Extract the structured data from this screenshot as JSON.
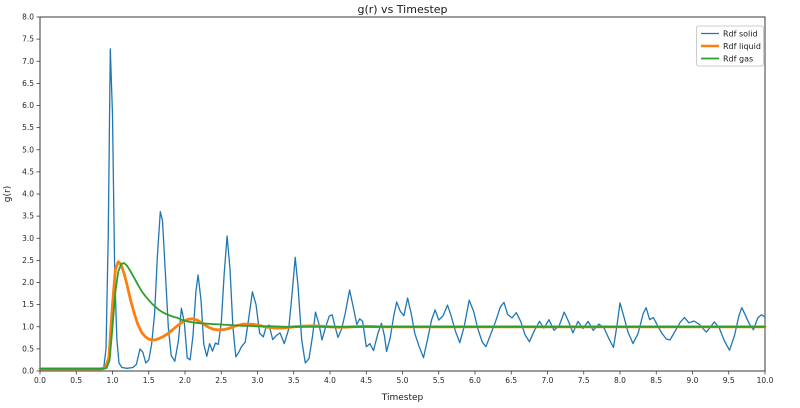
{
  "chart_data": {
    "type": "line",
    "title": "g(r) vs Timestep",
    "xlabel": "Timestep",
    "ylabel": "g(r)",
    "xlim": [
      0.0,
      10.0
    ],
    "ylim": [
      0.0,
      8.0
    ],
    "xtick_step": 0.5,
    "ytick_step": 0.5,
    "grid": false,
    "legend_position": "upper right",
    "background_color": "#ffffff",
    "spine_color": "#3a3a3a",
    "tick_color": "#3a3a3a",
    "legend_border_color": "#cccccc",
    "series": [
      {
        "name": "Rdf solid",
        "color": "#1f77b4",
        "line_width": 1.3,
        "points": [
          [
            0,
            0.05
          ],
          [
            0.3,
            0.04
          ],
          [
            0.6,
            0.05
          ],
          [
            0.8,
            0.05
          ],
          [
            0.88,
            0.08
          ],
          [
            0.91,
            0.5
          ],
          [
            0.94,
            3.0
          ],
          [
            0.97,
            7.28
          ],
          [
            1.0,
            5.8
          ],
          [
            1.03,
            2.2
          ],
          [
            1.06,
            0.7
          ],
          [
            1.09,
            0.18
          ],
          [
            1.13,
            0.08
          ],
          [
            1.2,
            0.06
          ],
          [
            1.28,
            0.08
          ],
          [
            1.33,
            0.15
          ],
          [
            1.38,
            0.5
          ],
          [
            1.42,
            0.42
          ],
          [
            1.46,
            0.18
          ],
          [
            1.5,
            0.25
          ],
          [
            1.54,
            0.6
          ],
          [
            1.58,
            1.3
          ],
          [
            1.62,
            2.6
          ],
          [
            1.66,
            3.6
          ],
          [
            1.69,
            3.4
          ],
          [
            1.73,
            2.2
          ],
          [
            1.77,
            1.0
          ],
          [
            1.81,
            0.35
          ],
          [
            1.86,
            0.22
          ],
          [
            1.91,
            0.7
          ],
          [
            1.95,
            1.42
          ],
          [
            1.99,
            1.1
          ],
          [
            2.03,
            0.3
          ],
          [
            2.07,
            0.25
          ],
          [
            2.11,
            0.8
          ],
          [
            2.15,
            1.8
          ],
          [
            2.18,
            2.17
          ],
          [
            2.22,
            1.6
          ],
          [
            2.26,
            0.6
          ],
          [
            2.3,
            0.33
          ],
          [
            2.34,
            0.62
          ],
          [
            2.38,
            0.45
          ],
          [
            2.42,
            0.63
          ],
          [
            2.46,
            0.6
          ],
          [
            2.5,
            1.1
          ],
          [
            2.54,
            2.2
          ],
          [
            2.58,
            3.05
          ],
          [
            2.62,
            2.3
          ],
          [
            2.66,
            1.0
          ],
          [
            2.7,
            0.32
          ],
          [
            2.74,
            0.42
          ],
          [
            2.78,
            0.55
          ],
          [
            2.83,
            0.65
          ],
          [
            2.88,
            1.2
          ],
          [
            2.93,
            1.79
          ],
          [
            2.98,
            1.5
          ],
          [
            3.03,
            0.85
          ],
          [
            3.08,
            0.77
          ],
          [
            3.12,
            1.0
          ],
          [
            3.16,
            1.04
          ],
          [
            3.21,
            0.71
          ],
          [
            3.26,
            0.8
          ],
          [
            3.31,
            0.86
          ],
          [
            3.37,
            0.62
          ],
          [
            3.43,
            0.95
          ],
          [
            3.48,
            1.8
          ],
          [
            3.52,
            2.57
          ],
          [
            3.56,
            1.9
          ],
          [
            3.61,
            0.7
          ],
          [
            3.66,
            0.18
          ],
          [
            3.71,
            0.28
          ],
          [
            3.76,
            0.8
          ],
          [
            3.8,
            1.33
          ],
          [
            3.85,
            1.05
          ],
          [
            3.89,
            0.7
          ],
          [
            3.94,
            1.0
          ],
          [
            3.99,
            1.24
          ],
          [
            4.03,
            1.27
          ],
          [
            4.07,
            1.0
          ],
          [
            4.11,
            0.76
          ],
          [
            4.16,
            0.95
          ],
          [
            4.21,
            1.3
          ],
          [
            4.27,
            1.83
          ],
          [
            4.32,
            1.45
          ],
          [
            4.37,
            1.05
          ],
          [
            4.41,
            1.18
          ],
          [
            4.45,
            1.12
          ],
          [
            4.5,
            0.55
          ],
          [
            4.55,
            0.62
          ],
          [
            4.6,
            0.46
          ],
          [
            4.66,
            0.85
          ],
          [
            4.71,
            1.08
          ],
          [
            4.75,
            0.8
          ],
          [
            4.78,
            0.44
          ],
          [
            4.83,
            0.75
          ],
          [
            4.88,
            1.25
          ],
          [
            4.92,
            1.56
          ],
          [
            4.97,
            1.35
          ],
          [
            5.02,
            1.25
          ],
          [
            5.07,
            1.65
          ],
          [
            5.12,
            1.3
          ],
          [
            5.17,
            0.85
          ],
          [
            5.23,
            0.55
          ],
          [
            5.29,
            0.3
          ],
          [
            5.35,
            0.75
          ],
          [
            5.4,
            1.15
          ],
          [
            5.45,
            1.38
          ],
          [
            5.5,
            1.15
          ],
          [
            5.56,
            1.25
          ],
          [
            5.62,
            1.49
          ],
          [
            5.67,
            1.25
          ],
          [
            5.73,
            0.9
          ],
          [
            5.79,
            0.64
          ],
          [
            5.85,
            1.0
          ],
          [
            5.92,
            1.6
          ],
          [
            5.98,
            1.35
          ],
          [
            6.04,
            0.95
          ],
          [
            6.1,
            0.65
          ],
          [
            6.15,
            0.55
          ],
          [
            6.21,
            0.8
          ],
          [
            6.28,
            1.1
          ],
          [
            6.35,
            1.45
          ],
          [
            6.4,
            1.55
          ],
          [
            6.45,
            1.28
          ],
          [
            6.51,
            1.2
          ],
          [
            6.57,
            1.32
          ],
          [
            6.63,
            1.12
          ],
          [
            6.69,
            0.82
          ],
          [
            6.75,
            0.66
          ],
          [
            6.82,
            0.92
          ],
          [
            6.89,
            1.12
          ],
          [
            6.95,
            0.97
          ],
          [
            7.02,
            1.16
          ],
          [
            7.09,
            0.92
          ],
          [
            7.16,
            1.02
          ],
          [
            7.23,
            1.33
          ],
          [
            7.29,
            1.12
          ],
          [
            7.35,
            0.86
          ],
          [
            7.42,
            1.12
          ],
          [
            7.49,
            0.96
          ],
          [
            7.56,
            1.12
          ],
          [
            7.63,
            0.92
          ],
          [
            7.71,
            1.06
          ],
          [
            7.78,
            0.97
          ],
          [
            7.85,
            0.72
          ],
          [
            7.91,
            0.53
          ],
          [
            7.96,
            1.05
          ],
          [
            8.0,
            1.54
          ],
          [
            8.05,
            1.25
          ],
          [
            8.11,
            0.88
          ],
          [
            8.18,
            0.62
          ],
          [
            8.25,
            0.85
          ],
          [
            8.32,
            1.3
          ],
          [
            8.36,
            1.43
          ],
          [
            8.41,
            1.16
          ],
          [
            8.46,
            1.21
          ],
          [
            8.52,
            1.02
          ],
          [
            8.58,
            0.85
          ],
          [
            8.64,
            0.72
          ],
          [
            8.69,
            0.7
          ],
          [
            8.76,
            0.9
          ],
          [
            8.83,
            1.1
          ],
          [
            8.89,
            1.21
          ],
          [
            8.95,
            1.09
          ],
          [
            9.02,
            1.13
          ],
          [
            9.09,
            1.06
          ],
          [
            9.15,
            0.95
          ],
          [
            9.19,
            0.88
          ],
          [
            9.25,
            1.0
          ],
          [
            9.3,
            1.11
          ],
          [
            9.37,
            0.97
          ],
          [
            9.44,
            0.68
          ],
          [
            9.51,
            0.47
          ],
          [
            9.58,
            0.8
          ],
          [
            9.64,
            1.25
          ],
          [
            9.68,
            1.43
          ],
          [
            9.73,
            1.26
          ],
          [
            9.78,
            1.08
          ],
          [
            9.84,
            0.93
          ],
          [
            9.9,
            1.2
          ],
          [
            9.95,
            1.27
          ],
          [
            10.0,
            1.22
          ]
        ]
      },
      {
        "name": "Rdf liquid",
        "color": "#ff7f0e",
        "line_width": 2.8,
        "points": [
          [
            0,
            0.05
          ],
          [
            0.5,
            0.05
          ],
          [
            0.85,
            0.05
          ],
          [
            0.9,
            0.07
          ],
          [
            0.95,
            0.3
          ],
          [
            1.0,
            1.5
          ],
          [
            1.04,
            2.3
          ],
          [
            1.08,
            2.47
          ],
          [
            1.12,
            2.4
          ],
          [
            1.16,
            2.2
          ],
          [
            1.2,
            1.95
          ],
          [
            1.25,
            1.6
          ],
          [
            1.3,
            1.3
          ],
          [
            1.35,
            1.05
          ],
          [
            1.4,
            0.88
          ],
          [
            1.45,
            0.78
          ],
          [
            1.5,
            0.72
          ],
          [
            1.55,
            0.7
          ],
          [
            1.6,
            0.71
          ],
          [
            1.65,
            0.74
          ],
          [
            1.7,
            0.78
          ],
          [
            1.75,
            0.83
          ],
          [
            1.8,
            0.89
          ],
          [
            1.85,
            0.96
          ],
          [
            1.9,
            1.03
          ],
          [
            1.95,
            1.09
          ],
          [
            2.0,
            1.14
          ],
          [
            2.05,
            1.17
          ],
          [
            2.1,
            1.18
          ],
          [
            2.15,
            1.16
          ],
          [
            2.2,
            1.12
          ],
          [
            2.25,
            1.07
          ],
          [
            2.3,
            1.01
          ],
          [
            2.35,
            0.97
          ],
          [
            2.4,
            0.94
          ],
          [
            2.45,
            0.93
          ],
          [
            2.5,
            0.93
          ],
          [
            2.55,
            0.94
          ],
          [
            2.6,
            0.96
          ],
          [
            2.65,
            0.99
          ],
          [
            2.7,
            1.02
          ],
          [
            2.75,
            1.04
          ],
          [
            2.8,
            1.06
          ],
          [
            2.85,
            1.06
          ],
          [
            2.9,
            1.06
          ],
          [
            2.95,
            1.05
          ],
          [
            3.0,
            1.04
          ],
          [
            3.05,
            1.02
          ],
          [
            3.1,
            1.0
          ],
          [
            3.15,
            0.99
          ],
          [
            3.2,
            0.98
          ],
          [
            3.25,
            0.97
          ],
          [
            3.3,
            0.97
          ],
          [
            3.35,
            0.97
          ],
          [
            3.4,
            0.98
          ],
          [
            3.5,
            1.0
          ],
          [
            3.6,
            1.01
          ],
          [
            3.7,
            1.02
          ],
          [
            3.8,
            1.02
          ],
          [
            3.9,
            1.01
          ],
          [
            4.0,
            1.0
          ],
          [
            4.1,
            0.99
          ],
          [
            4.2,
            0.99
          ],
          [
            4.3,
            1.0
          ],
          [
            4.5,
            1.01
          ],
          [
            4.7,
            1.0
          ],
          [
            5.0,
            1.0
          ],
          [
            5.5,
            1.0
          ],
          [
            6.0,
            1.0
          ],
          [
            6.5,
            1.0
          ],
          [
            7.0,
            1.0
          ],
          [
            7.5,
            1.0
          ],
          [
            8.0,
            1.0
          ],
          [
            8.5,
            1.0
          ],
          [
            9.0,
            1.0
          ],
          [
            9.5,
            1.0
          ],
          [
            10.0,
            1.0
          ]
        ]
      },
      {
        "name": "Rdf gas",
        "color": "#2ca02c",
        "line_width": 1.8,
        "points": [
          [
            0,
            0.05
          ],
          [
            0.5,
            0.05
          ],
          [
            0.88,
            0.05
          ],
          [
            0.92,
            0.07
          ],
          [
            0.96,
            0.25
          ],
          [
            1.0,
            1.0
          ],
          [
            1.04,
            1.8
          ],
          [
            1.08,
            2.25
          ],
          [
            1.12,
            2.42
          ],
          [
            1.16,
            2.44
          ],
          [
            1.2,
            2.38
          ],
          [
            1.25,
            2.25
          ],
          [
            1.3,
            2.1
          ],
          [
            1.35,
            1.95
          ],
          [
            1.4,
            1.81
          ],
          [
            1.45,
            1.7
          ],
          [
            1.5,
            1.6
          ],
          [
            1.55,
            1.51
          ],
          [
            1.6,
            1.44
          ],
          [
            1.65,
            1.37
          ],
          [
            1.7,
            1.32
          ],
          [
            1.75,
            1.28
          ],
          [
            1.8,
            1.25
          ],
          [
            1.85,
            1.22
          ],
          [
            1.9,
            1.2
          ],
          [
            1.95,
            1.16
          ],
          [
            2.0,
            1.13
          ],
          [
            2.1,
            1.1
          ],
          [
            2.2,
            1.08
          ],
          [
            2.3,
            1.07
          ],
          [
            2.4,
            1.06
          ],
          [
            2.5,
            1.05
          ],
          [
            2.6,
            1.04
          ],
          [
            2.7,
            1.03
          ],
          [
            2.8,
            1.02
          ],
          [
            2.9,
            1.02
          ],
          [
            3.0,
            1.01
          ],
          [
            3.2,
            1.01
          ],
          [
            3.4,
            1.0
          ],
          [
            3.6,
            1.0
          ],
          [
            4.0,
            1.0
          ],
          [
            4.5,
            1.0
          ],
          [
            5.0,
            1.0
          ],
          [
            5.5,
            1.0
          ],
          [
            6.0,
            1.0
          ],
          [
            6.5,
            1.0
          ],
          [
            7.0,
            1.0
          ],
          [
            7.5,
            1.0
          ],
          [
            8.0,
            1.0
          ],
          [
            8.5,
            1.0
          ],
          [
            9.0,
            1.0
          ],
          [
            9.5,
            1.0
          ],
          [
            10.0,
            1.0
          ]
        ]
      }
    ]
  }
}
